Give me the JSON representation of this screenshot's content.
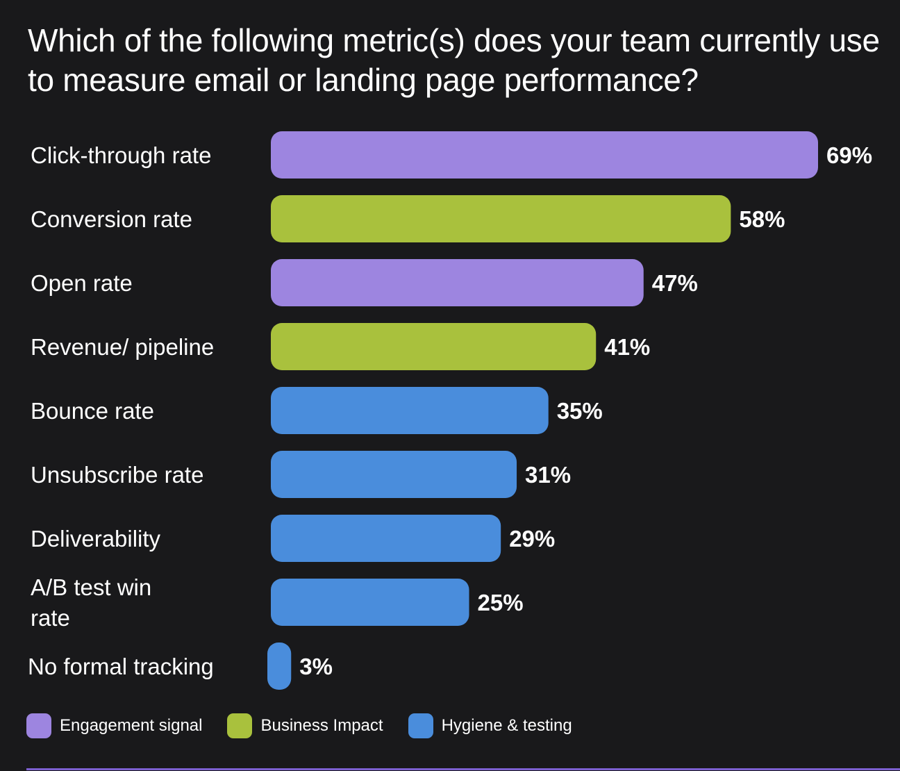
{
  "chart_data": {
    "type": "bar",
    "orientation": "horizontal",
    "title": "Which of the following metric(s) does your team currently use to measure email or landing page performance?",
    "categories": [
      "Click-through rate",
      "Conversion rate",
      "Open rate",
      "Revenue/ pipeline",
      "Bounce rate",
      "Unsubscribe rate",
      "Deliverability",
      "A/B test win rate",
      "No formal tracking"
    ],
    "values": [
      69,
      58,
      47,
      41,
      35,
      31,
      29,
      25,
      3
    ],
    "value_labels": [
      "69%",
      "58%",
      "47%",
      "41%",
      "35%",
      "31%",
      "29%",
      "25%",
      "3%"
    ],
    "bar_groups": [
      "engagement",
      "business",
      "engagement",
      "business",
      "hygiene",
      "hygiene",
      "hygiene",
      "hygiene",
      "hygiene"
    ],
    "unit": "%",
    "xlim": [
      0,
      69
    ],
    "grid": false,
    "legend_position": "bottom-left",
    "legend": [
      {
        "key": "engagement",
        "name": "Engagement signal",
        "color": "#9d85e0"
      },
      {
        "key": "business",
        "name": "Business Impact",
        "color": "#a9c13d"
      },
      {
        "key": "hygiene",
        "name": "Hygiene & testing",
        "color": "#4a8ddc"
      }
    ]
  },
  "colors": {
    "background": "#19191b",
    "text": "#ffffff",
    "accent_rule": "#7c5fd0"
  }
}
